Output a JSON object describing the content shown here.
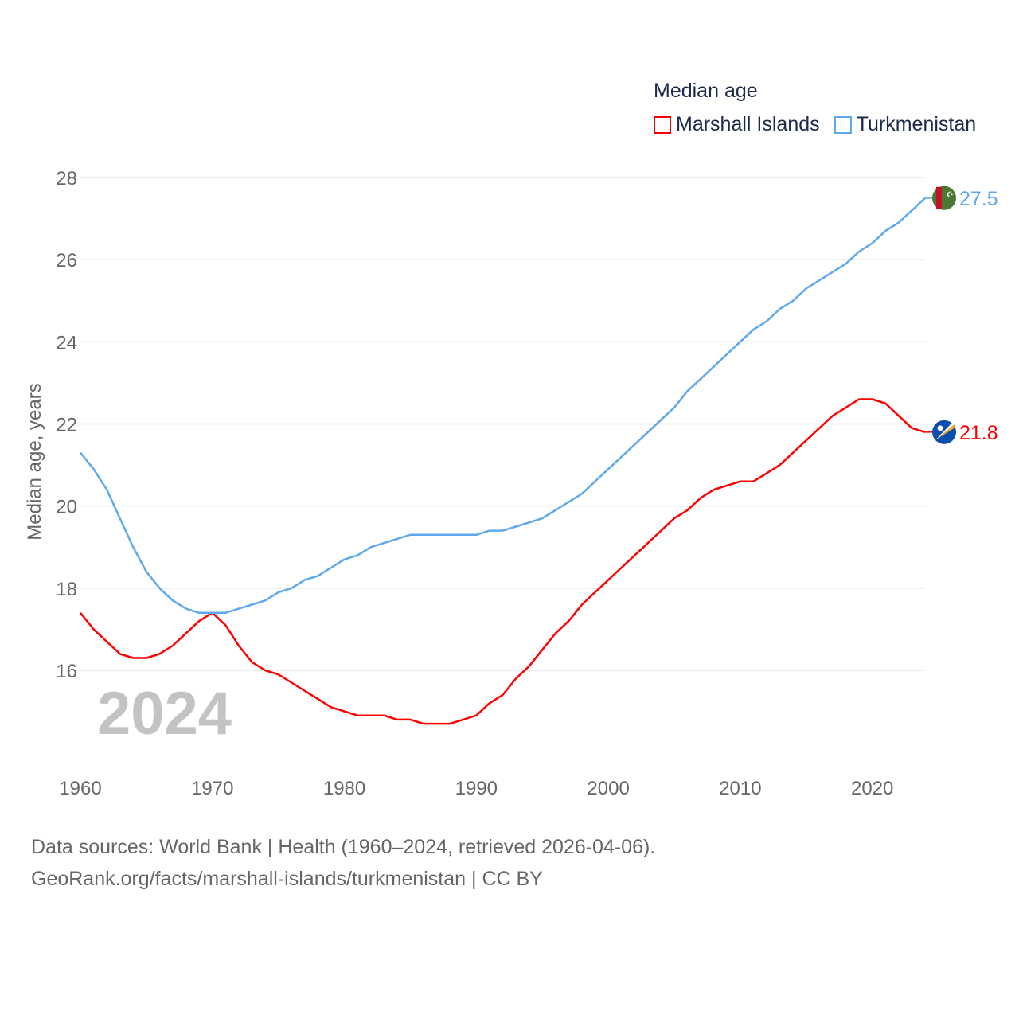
{
  "chart_data": {
    "type": "line",
    "title": "Median age",
    "xlabel": "",
    "ylabel": "Median age, years",
    "xlim": [
      1960,
      2024
    ],
    "ylim": [
      14.2,
      28
    ],
    "x_ticks": [
      1960,
      1970,
      1980,
      1990,
      2000,
      2010,
      2020
    ],
    "y_ticks": [
      16,
      18,
      20,
      22,
      24,
      26,
      28
    ],
    "grid": true,
    "legend_position": "top-right",
    "watermark_year": "2024",
    "x": [
      1960,
      1961,
      1962,
      1963,
      1964,
      1965,
      1966,
      1967,
      1968,
      1969,
      1970,
      1971,
      1972,
      1973,
      1974,
      1975,
      1976,
      1977,
      1978,
      1979,
      1980,
      1981,
      1982,
      1983,
      1984,
      1985,
      1986,
      1987,
      1988,
      1989,
      1990,
      1991,
      1992,
      1993,
      1994,
      1995,
      1996,
      1997,
      1998,
      1999,
      2000,
      2001,
      2002,
      2003,
      2004,
      2005,
      2006,
      2007,
      2008,
      2009,
      2010,
      2011,
      2012,
      2013,
      2014,
      2015,
      2016,
      2017,
      2018,
      2019,
      2020,
      2021,
      2022,
      2023,
      2024
    ],
    "series": [
      {
        "name": "Marshall Islands",
        "color": "#ff0000",
        "end_label": "21.8",
        "flag": "marshall-islands-flag",
        "values": [
          17.4,
          17.0,
          16.7,
          16.4,
          16.3,
          16.3,
          16.4,
          16.6,
          16.9,
          17.2,
          17.4,
          17.1,
          16.6,
          16.2,
          16.0,
          15.9,
          15.7,
          15.5,
          15.3,
          15.1,
          15.0,
          14.9,
          14.9,
          14.9,
          14.8,
          14.8,
          14.7,
          14.7,
          14.7,
          14.8,
          14.9,
          15.2,
          15.4,
          15.8,
          16.1,
          16.5,
          16.9,
          17.2,
          17.6,
          17.9,
          18.2,
          18.5,
          18.8,
          19.1,
          19.4,
          19.7,
          19.9,
          20.2,
          20.4,
          20.5,
          20.6,
          20.6,
          20.8,
          21.0,
          21.3,
          21.6,
          21.9,
          22.2,
          22.4,
          22.6,
          22.6,
          22.5,
          22.2,
          21.9,
          21.8
        ]
      },
      {
        "name": "Turkmenistan",
        "color": "#5ea8ee",
        "end_label": "27.5",
        "flag": "turkmenistan-flag",
        "values": [
          21.3,
          20.9,
          20.4,
          19.7,
          19.0,
          18.4,
          18.0,
          17.7,
          17.5,
          17.4,
          17.4,
          17.4,
          17.5,
          17.6,
          17.7,
          17.9,
          18.0,
          18.2,
          18.3,
          18.5,
          18.7,
          18.8,
          19.0,
          19.1,
          19.2,
          19.3,
          19.3,
          19.3,
          19.3,
          19.3,
          19.3,
          19.4,
          19.4,
          19.5,
          19.6,
          19.7,
          19.9,
          20.1,
          20.3,
          20.6,
          20.9,
          21.2,
          21.5,
          21.8,
          22.1,
          22.4,
          22.8,
          23.1,
          23.4,
          23.7,
          24.0,
          24.3,
          24.5,
          24.8,
          25.0,
          25.3,
          25.5,
          25.7,
          25.9,
          26.2,
          26.4,
          26.7,
          26.9,
          27.2,
          27.5
        ]
      }
    ]
  },
  "footer": {
    "line1": "Data sources: World Bank | Health (1960–2024, retrieved 2026-04-06).",
    "line2": "GeoRank.org/facts/marshall-islands/turkmenistan | CC BY"
  }
}
